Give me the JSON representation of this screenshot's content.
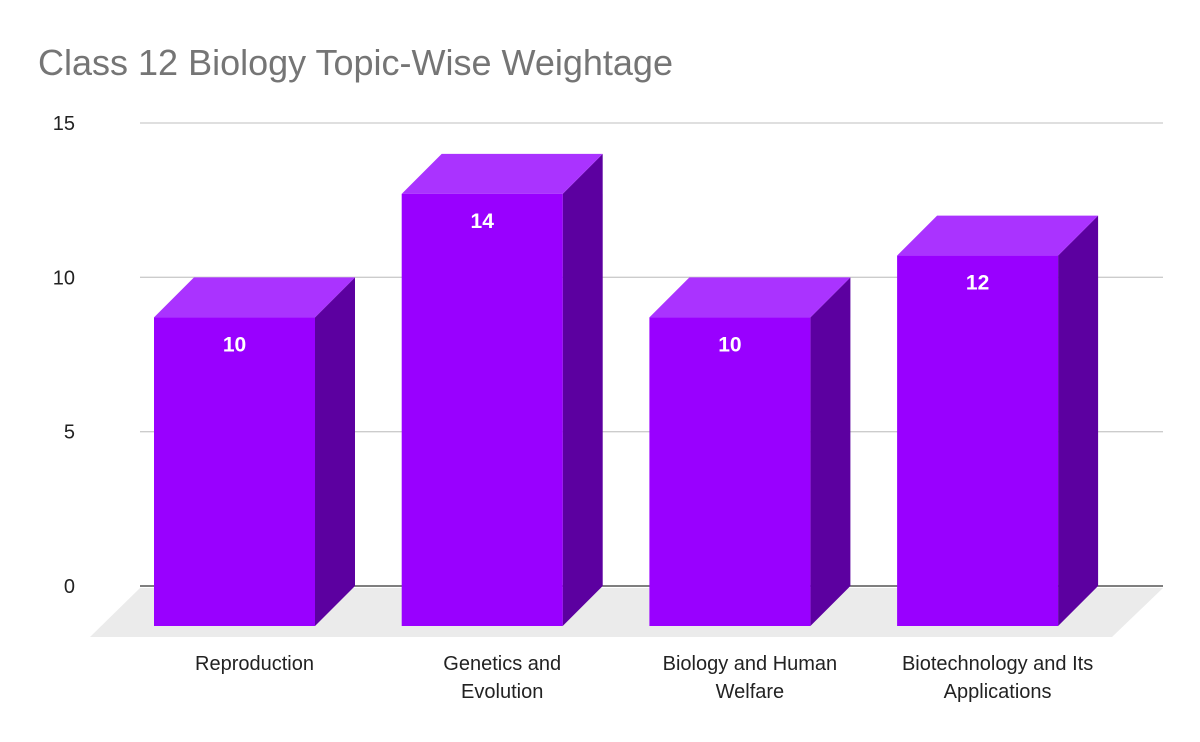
{
  "chart_data": {
    "type": "bar",
    "style": "3d",
    "title": "Class 12 Biology Topic-Wise Weightage",
    "categories": [
      [
        "Reproduction"
      ],
      [
        "Genetics and",
        "Evolution"
      ],
      [
        "Biology and Human",
        "Welfare"
      ],
      [
        "Biotechnology and Its",
        "Applications"
      ]
    ],
    "values": [
      10,
      14,
      10,
      12
    ],
    "data_labels": [
      "10",
      "14",
      "10",
      "12"
    ],
    "ylim": [
      0,
      15
    ],
    "yticks": [
      "0",
      "5",
      "10",
      "15"
    ],
    "grid": true,
    "xlabel": "",
    "ylabel": "",
    "colors": {
      "front": "#9900ff",
      "top": "#aa33ff",
      "side": "#5c00a0",
      "floor": "#ebebeb",
      "grid": "#cccccc"
    }
  }
}
